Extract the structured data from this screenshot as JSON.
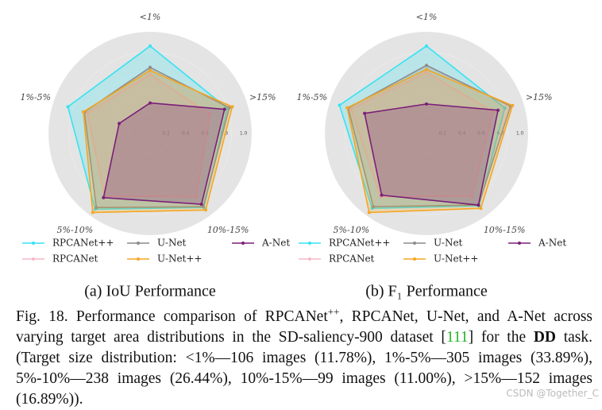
{
  "chart_data": [
    {
      "type": "radar",
      "subtitle": "(a) IoU Performance",
      "categories": [
        "<1%",
        ">15%",
        "10%-15%",
        "5%-10%",
        "1%-5%"
      ],
      "rlim": [
        0,
        1
      ],
      "rticks": [
        0.2,
        0.4,
        0.6,
        0.8,
        {
          "value": 1,
          "label": "1.0"
        }
      ],
      "series": [
        {
          "name": "RPCANet++",
          "color": "#36e3f2",
          "values": [
            0.86,
            0.8,
            0.9,
            0.92,
            0.85
          ]
        },
        {
          "name": "RPCANet",
          "color": "#f5b9c9",
          "values": [
            0.58,
            0.62,
            0.77,
            0.76,
            0.65
          ]
        },
        {
          "name": "U-Net",
          "color": "#8c8c8c",
          "values": [
            0.65,
            0.82,
            0.89,
            0.9,
            0.68
          ]
        },
        {
          "name": "U-Net++",
          "color": "#f5a623",
          "values": [
            0.62,
            0.85,
            0.93,
            0.96,
            0.69
          ]
        },
        {
          "name": "A-Net",
          "color": "#7a1f78",
          "values": [
            0.3,
            0.77,
            0.86,
            0.78,
            0.32
          ]
        }
      ]
    },
    {
      "type": "radar",
      "subtitle": "(b) F₁ Performance",
      "categories": [
        "<1%",
        ">15%",
        "10%-15%",
        "5%-10%",
        "1%-5%"
      ],
      "rlim": [
        0,
        1
      ],
      "rticks": [
        0.2,
        0.4,
        0.6,
        0.8,
        {
          "value": 1,
          "label": "1.0"
        }
      ],
      "series": [
        {
          "name": "RPCANet++",
          "color": "#36e3f2",
          "values": [
            0.86,
            0.81,
            0.88,
            0.91,
            0.9
          ]
        },
        {
          "name": "RPCANet",
          "color": "#f5b9c9",
          "values": [
            0.6,
            0.69,
            0.76,
            0.77,
            0.78
          ]
        },
        {
          "name": "U-Net",
          "color": "#8c8c8c",
          "values": [
            0.67,
            0.87,
            0.87,
            0.89,
            0.81
          ]
        },
        {
          "name": "U-Net++",
          "color": "#f5a623",
          "values": [
            0.63,
            0.89,
            0.91,
            0.96,
            0.82
          ]
        },
        {
          "name": "A-Net",
          "color": "#7a1f78",
          "values": [
            0.29,
            0.74,
            0.87,
            0.75,
            0.64
          ]
        }
      ]
    }
  ],
  "caption": [
    "Fig. 18. Performance comparison of RPCANet",
    "++",
    ", RPCANet, U-Net, and A-Net across varying target area distributions in the SD-saliency-900 dataset ",
    "[",
    "111",
    "]",
    " for the ",
    "DD",
    " task. (Target size distribution: <1%—106 images (11.78%), 1%-5%—305 images (33.89%), 5%-10%—238 images (26.44%), 10%-15%—99 images (11.00%), >15%—152 images (16.89%))."
  ],
  "watermark": "CSDN @Together_C"
}
